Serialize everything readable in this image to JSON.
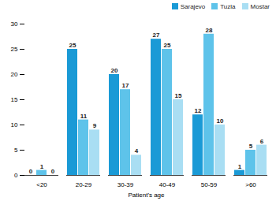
{
  "chart_data": {
    "type": "bar",
    "x_label": "Patient's age",
    "categories": [
      "<20",
      "20-29",
      "30-39",
      "40-49",
      "50-59",
      ">60"
    ],
    "series": [
      {
        "name": "Sarajevo",
        "color": "#1a9ad6",
        "values": [
          0,
          25,
          20,
          27,
          12,
          1
        ]
      },
      {
        "name": "Tuzla",
        "color": "#5ec3ea",
        "values": [
          1,
          11,
          17,
          25,
          28,
          5
        ]
      },
      {
        "name": "Mostar",
        "color": "#a9def3",
        "values": [
          0,
          9,
          4,
          15,
          10,
          6
        ]
      }
    ],
    "ylim": [
      0,
      30
    ],
    "yticks": [
      0,
      5,
      10,
      15,
      20,
      25,
      30
    ],
    "grid": false,
    "legend": "top-right",
    "data_labels": true
  }
}
